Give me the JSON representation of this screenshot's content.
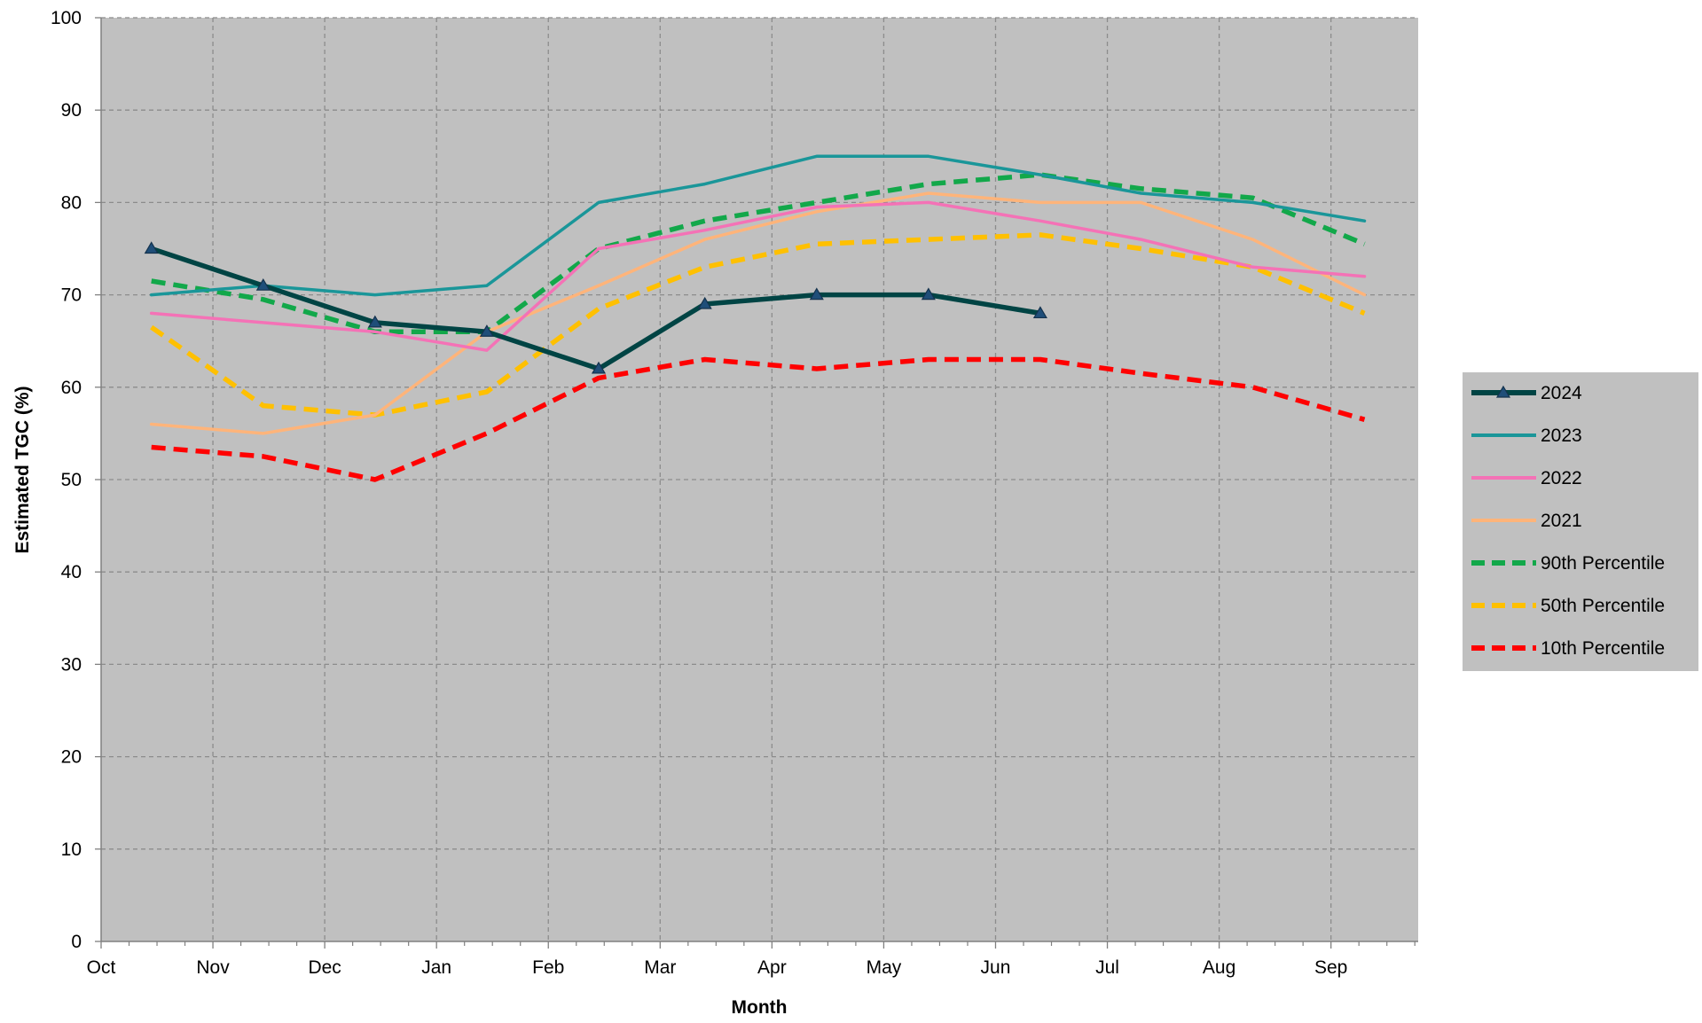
{
  "chart_data": {
    "type": "line",
    "title": "",
    "xlabel": "Month",
    "ylabel": "Estimated TGC (%)",
    "ylim": [
      0,
      100
    ],
    "y_ticks": [
      0,
      10,
      20,
      30,
      40,
      50,
      60,
      70,
      80,
      90,
      100
    ],
    "x_tick_labels": [
      "Oct",
      "Nov",
      "Dec",
      "Jan",
      "Feb",
      "Mar",
      "Apr",
      "May",
      "Jun",
      "Jul",
      "Aug",
      "Sep"
    ],
    "xlim": [
      0,
      11.78
    ],
    "grid": true,
    "legend_position": "right",
    "x": [
      0.45,
      1.45,
      2.45,
      3.45,
      4.45,
      5.4,
      6.4,
      7.4,
      8.4,
      9.3,
      10.3,
      11.3
    ],
    "series": [
      {
        "name": "2024",
        "color": "#004444",
        "dash": "solid",
        "marker": "triangle",
        "values": [
          75,
          71,
          67,
          66,
          62,
          69,
          70,
          70,
          68,
          null,
          null,
          null
        ]
      },
      {
        "name": "2023",
        "color": "#1a9699",
        "dash": "solid",
        "marker": "none",
        "values": [
          70,
          71,
          70,
          71,
          80,
          82,
          85,
          85,
          83,
          81,
          80,
          78
        ]
      },
      {
        "name": "2022",
        "color": "#f472b6",
        "dash": "solid",
        "marker": "none",
        "values": [
          68,
          67,
          66,
          64,
          75,
          77,
          79.5,
          80,
          78,
          76,
          73,
          72
        ]
      },
      {
        "name": "2021",
        "color": "#ffb47a",
        "dash": "solid",
        "marker": "none",
        "values": [
          56,
          55,
          57,
          66,
          71,
          76,
          79,
          81,
          80,
          80,
          76,
          70
        ]
      },
      {
        "name": "90th Percentile",
        "color": "#12a84a",
        "dash": "dashed",
        "marker": "none",
        "values": [
          71.5,
          69.5,
          66,
          66,
          75,
          78,
          80,
          82,
          83,
          81.5,
          80.5,
          75.5
        ]
      },
      {
        "name": "50th Percentile",
        "color": "#ffc000",
        "dash": "dashed",
        "marker": "none",
        "values": [
          66.5,
          58,
          57,
          59.5,
          68.5,
          73,
          75.5,
          76,
          76.5,
          75,
          73,
          68
        ]
      },
      {
        "name": "10th Percentile",
        "color": "#ff0000",
        "dash": "dashed",
        "marker": "none",
        "values": [
          53.5,
          52.5,
          50,
          55,
          61,
          63,
          62,
          63,
          63,
          61.5,
          60,
          56.5
        ]
      }
    ]
  }
}
